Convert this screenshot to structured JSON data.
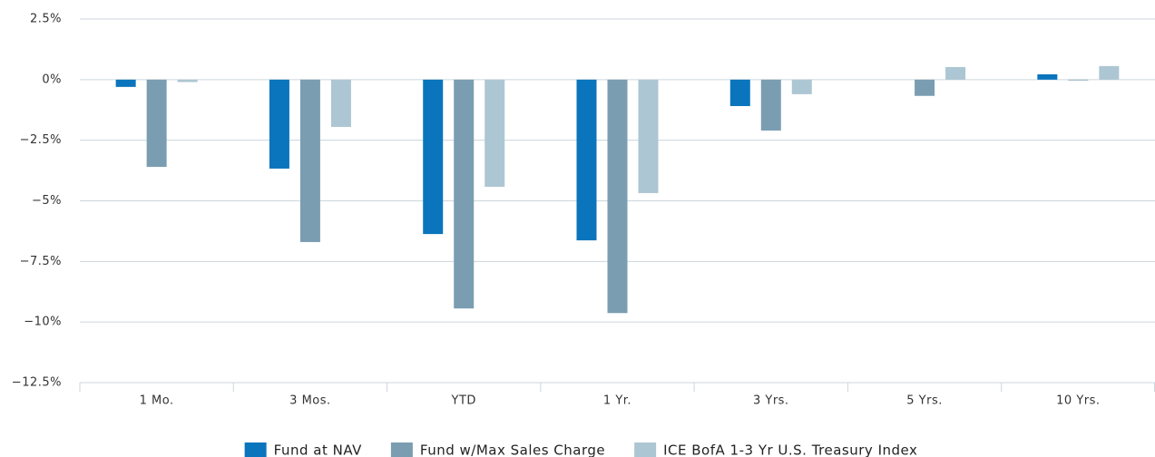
{
  "chart_data": {
    "type": "bar",
    "categories": [
      "1 Mo.",
      "3 Mos.",
      "YTD",
      "1 Yr.",
      "3 Yrs.",
      "5 Yrs.",
      "10 Yrs."
    ],
    "series": [
      {
        "name": "Fund at NAV",
        "color": "#0a75bc",
        "values": [
          -0.3,
          -3.67,
          -6.37,
          -6.63,
          -1.09,
          0,
          0.22
        ]
      },
      {
        "name": "Fund w/Max Sales Charge",
        "color": "#7a9db1",
        "values": [
          -3.6,
          -6.7,
          -9.44,
          -9.63,
          -2.1,
          -0.67,
          -0.03
        ]
      },
      {
        "name": "ICE BofA 1-3 Yr U.S. Treasury Index",
        "color": "#adc6d3",
        "values": [
          -0.1,
          -1.95,
          -4.42,
          -4.68,
          -0.6,
          0.52,
          0.56
        ]
      }
    ],
    "ylim": [
      -12.5,
      2.5
    ],
    "yticks": [
      {
        "value": 2.5,
        "label": "2.5%"
      },
      {
        "value": 0,
        "label": "0%"
      },
      {
        "value": -2.5,
        "label": "−2.5%"
      },
      {
        "value": -5,
        "label": "−5%"
      },
      {
        "value": -7.5,
        "label": "−7.5%"
      },
      {
        "value": -10,
        "label": "−10%"
      },
      {
        "value": -12.5,
        "label": "−12.5%"
      }
    ],
    "grid": true
  }
}
